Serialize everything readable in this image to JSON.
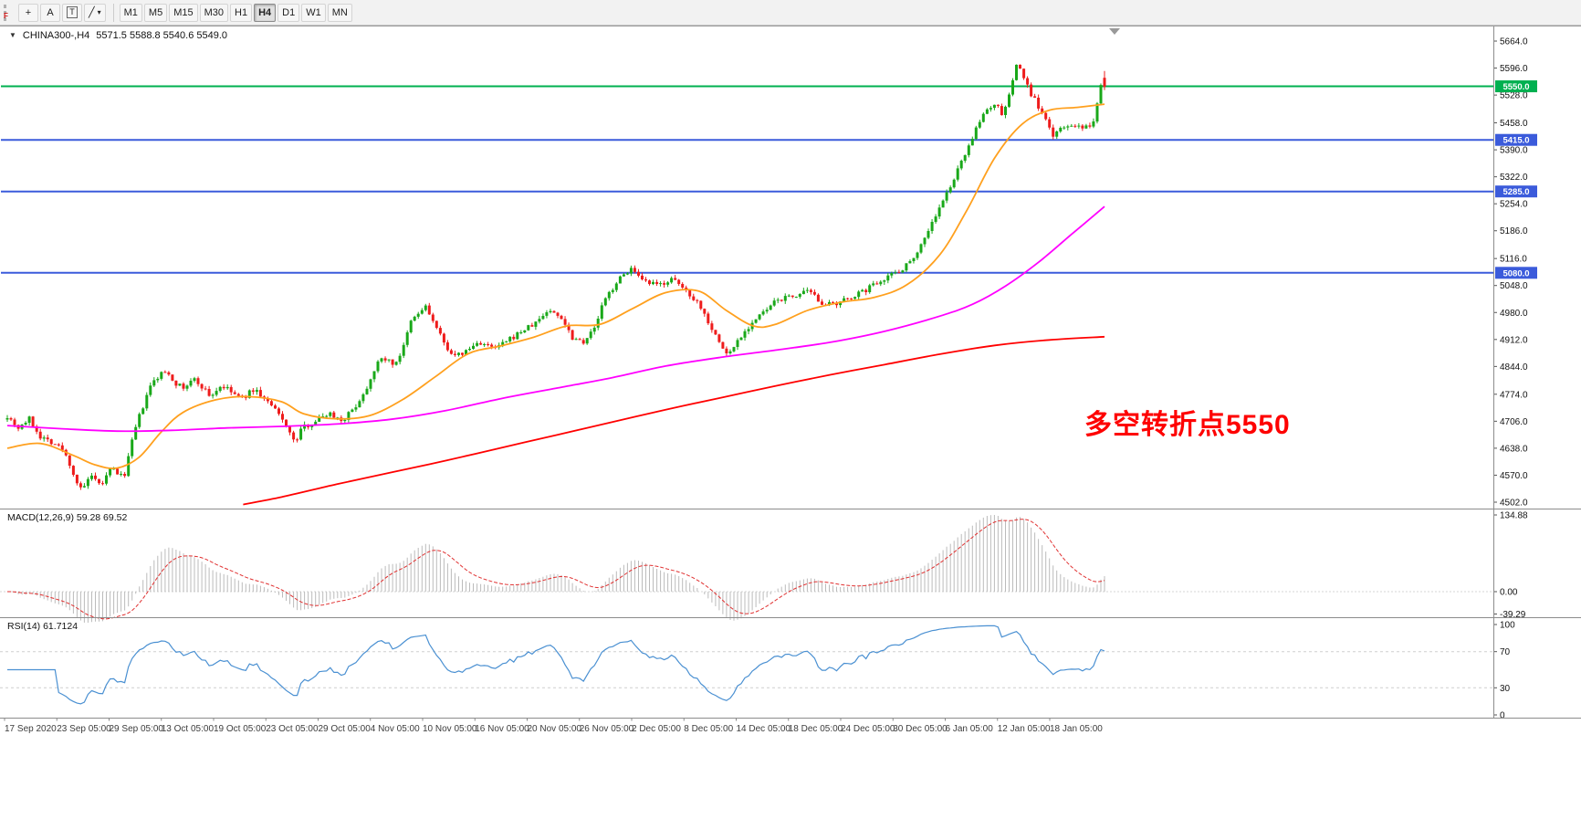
{
  "toolbar": {
    "edge_tab": "F",
    "tools": [
      {
        "name": "cursor-tool",
        "glyph": "+"
      },
      {
        "name": "text-tool",
        "glyph": "A"
      },
      {
        "name": "text-label-tool",
        "glyph": "T",
        "boxed": true
      },
      {
        "name": "shapes-tool",
        "glyph": "╱",
        "caret": "▾"
      }
    ],
    "timeframes": [
      "M1",
      "M5",
      "M15",
      "M30",
      "H1",
      "H4",
      "D1",
      "W1",
      "MN"
    ],
    "active_timeframe": "H4"
  },
  "icons": {
    "symbol_marker": "▼"
  },
  "chart": {
    "title": "CHINA300-,H4",
    "ohlc_text": "5571.5 5588.8 5540.6 5549.0",
    "annotation": {
      "text": "多空转折点5550",
      "color": "#FE0000"
    },
    "y_ticks": [
      5664,
      5596,
      5528,
      5458,
      5390,
      5322,
      5254,
      5186,
      5116,
      5048,
      4980,
      4912,
      4844,
      4774,
      4706,
      4638,
      4570,
      4502
    ]
  },
  "indicators": {
    "macd": {
      "label": "MACD(12,26,9) 59.28 69.52"
    },
    "rsi": {
      "label": "RSI(14) 61.7124"
    }
  },
  "time_axis": [
    "17 Sep 2020",
    "23 Sep 05:00",
    "29 Sep 05:00",
    "13 Oct 05:00",
    "19 Oct 05:00",
    "23 Oct 05:00",
    "29 Oct 05:00",
    "4 Nov 05:00",
    "10 Nov 05:00",
    "16 Nov 05:00",
    "20 Nov 05:00",
    "26 Nov 05:00",
    "2 Dec 05:00",
    "8 Dec 05:00",
    "14 Dec 05:00",
    "18 Dec 05:00",
    "24 Dec 05:00",
    "30 Dec 05:00",
    "6 Jan 05:00",
    "12 Jan 05:00",
    "18 Jan 05:00"
  ],
  "chart_data": {
    "type": "candlestick",
    "symbol": "CHINA300-",
    "timeframe": "H4",
    "title": "CHINA300-,H4 5571.5 5588.8 5540.6 5549.0",
    "last_candle": {
      "open": 5571.5,
      "high": 5588.8,
      "low": 5540.6,
      "close": 5549.0
    },
    "visible_price_range": [
      4502.0,
      5664.0
    ],
    "visible_time_range": [
      "17 Sep 2020",
      "18 Jan 05:00"
    ],
    "candle_count": 300,
    "seed": 7,
    "price_path": [
      [
        0.0,
        4720
      ],
      [
        0.01,
        4690
      ],
      [
        0.02,
        4712
      ],
      [
        0.03,
        4668
      ],
      [
        0.042,
        4652
      ],
      [
        0.05,
        4635
      ],
      [
        0.056,
        4605
      ],
      [
        0.062,
        4560
      ],
      [
        0.068,
        4528
      ],
      [
        0.075,
        4568
      ],
      [
        0.085,
        4542
      ],
      [
        0.095,
        4588
      ],
      [
        0.106,
        4562
      ],
      [
        0.112,
        4635
      ],
      [
        0.118,
        4700
      ],
      [
        0.125,
        4752
      ],
      [
        0.131,
        4798
      ],
      [
        0.14,
        4825
      ],
      [
        0.146,
        4832
      ],
      [
        0.152,
        4806
      ],
      [
        0.16,
        4788
      ],
      [
        0.17,
        4812
      ],
      [
        0.178,
        4792
      ],
      [
        0.185,
        4768
      ],
      [
        0.195,
        4796
      ],
      [
        0.205,
        4778
      ],
      [
        0.214,
        4762
      ],
      [
        0.225,
        4788
      ],
      [
        0.235,
        4760
      ],
      [
        0.243,
        4738
      ],
      [
        0.255,
        4694
      ],
      [
        0.262,
        4648
      ],
      [
        0.268,
        4688
      ],
      [
        0.28,
        4706
      ],
      [
        0.293,
        4728
      ],
      [
        0.305,
        4708
      ],
      [
        0.315,
        4735
      ],
      [
        0.326,
        4780
      ],
      [
        0.335,
        4842
      ],
      [
        0.343,
        4868
      ],
      [
        0.352,
        4848
      ],
      [
        0.36,
        4882
      ],
      [
        0.368,
        4958
      ],
      [
        0.375,
        4978
      ],
      [
        0.381,
        4996
      ],
      [
        0.388,
        4958
      ],
      [
        0.398,
        4902
      ],
      [
        0.408,
        4868
      ],
      [
        0.418,
        4882
      ],
      [
        0.43,
        4906
      ],
      [
        0.443,
        4888
      ],
      [
        0.455,
        4906
      ],
      [
        0.468,
        4932
      ],
      [
        0.48,
        4950
      ],
      [
        0.493,
        4986
      ],
      [
        0.505,
        4968
      ],
      [
        0.515,
        4918
      ],
      [
        0.525,
        4908
      ],
      [
        0.535,
        4938
      ],
      [
        0.543,
        5004
      ],
      [
        0.555,
        5056
      ],
      [
        0.568,
        5092
      ],
      [
        0.578,
        5058
      ],
      [
        0.593,
        5048
      ],
      [
        0.605,
        5064
      ],
      [
        0.617,
        5040
      ],
      [
        0.63,
        5004
      ],
      [
        0.64,
        4952
      ],
      [
        0.65,
        4898
      ],
      [
        0.657,
        4872
      ],
      [
        0.667,
        4916
      ],
      [
        0.68,
        4958
      ],
      [
        0.692,
        4986
      ],
      [
        0.702,
        5012
      ],
      [
        0.717,
        5022
      ],
      [
        0.73,
        5032
      ],
      [
        0.742,
        5006
      ],
      [
        0.755,
        4996
      ],
      [
        0.767,
        5018
      ],
      [
        0.78,
        5032
      ],
      [
        0.792,
        5056
      ],
      [
        0.805,
        5076
      ],
      [
        0.817,
        5092
      ],
      [
        0.83,
        5136
      ],
      [
        0.842,
        5202
      ],
      [
        0.855,
        5272
      ],
      [
        0.867,
        5342
      ],
      [
        0.875,
        5396
      ],
      [
        0.884,
        5446
      ],
      [
        0.892,
        5492
      ],
      [
        0.9,
        5506
      ],
      [
        0.908,
        5476
      ],
      [
        0.917,
        5572
      ],
      [
        0.921,
        5612
      ],
      [
        0.925,
        5582
      ],
      [
        0.931,
        5540
      ],
      [
        0.937,
        5514
      ],
      [
        0.946,
        5464
      ],
      [
        0.954,
        5424
      ],
      [
        0.962,
        5446
      ],
      [
        0.971,
        5456
      ],
      [
        0.979,
        5440
      ],
      [
        0.987,
        5452
      ],
      [
        0.99,
        5458
      ],
      [
        0.9966,
        5560
      ],
      [
        1.0,
        5549
      ]
    ],
    "moving_averages": [
      {
        "name": "fast-ma",
        "color": "#FFA01E",
        "path": [
          [
            0.0,
            4638
          ],
          [
            0.03,
            4650
          ],
          [
            0.06,
            4620
          ],
          [
            0.08,
            4596
          ],
          [
            0.1,
            4588
          ],
          [
            0.12,
            4615
          ],
          [
            0.14,
            4678
          ],
          [
            0.16,
            4728
          ],
          [
            0.19,
            4760
          ],
          [
            0.22,
            4768
          ],
          [
            0.25,
            4755
          ],
          [
            0.27,
            4725
          ],
          [
            0.3,
            4712
          ],
          [
            0.33,
            4720
          ],
          [
            0.36,
            4760
          ],
          [
            0.39,
            4818
          ],
          [
            0.42,
            4876
          ],
          [
            0.45,
            4896
          ],
          [
            0.48,
            4918
          ],
          [
            0.51,
            4946
          ],
          [
            0.54,
            4950
          ],
          [
            0.57,
            4990
          ],
          [
            0.6,
            5030
          ],
          [
            0.63,
            5034
          ],
          [
            0.655,
            4986
          ],
          [
            0.68,
            4946
          ],
          [
            0.7,
            4950
          ],
          [
            0.73,
            4986
          ],
          [
            0.76,
            5006
          ],
          [
            0.79,
            5018
          ],
          [
            0.82,
            5050
          ],
          [
            0.85,
            5126
          ],
          [
            0.875,
            5240
          ],
          [
            0.9,
            5370
          ],
          [
            0.925,
            5455
          ],
          [
            0.95,
            5490
          ],
          [
            0.975,
            5497
          ],
          [
            1.0,
            5505
          ]
        ]
      },
      {
        "name": "medium-ma",
        "color": "#FF00FF",
        "path": [
          [
            0.0,
            4695
          ],
          [
            0.05,
            4687
          ],
          [
            0.1,
            4681
          ],
          [
            0.15,
            4683
          ],
          [
            0.2,
            4689
          ],
          [
            0.25,
            4693
          ],
          [
            0.3,
            4699
          ],
          [
            0.35,
            4711
          ],
          [
            0.4,
            4733
          ],
          [
            0.45,
            4763
          ],
          [
            0.5,
            4789
          ],
          [
            0.55,
            4815
          ],
          [
            0.6,
            4845
          ],
          [
            0.65,
            4867
          ],
          [
            0.7,
            4885
          ],
          [
            0.75,
            4905
          ],
          [
            0.8,
            4933
          ],
          [
            0.85,
            4971
          ],
          [
            0.88,
            5001
          ],
          [
            0.91,
            5047
          ],
          [
            0.94,
            5107
          ],
          [
            0.97,
            5177
          ],
          [
            1.0,
            5247
          ]
        ]
      },
      {
        "name": "slow-ma",
        "color": "#FF0000",
        "path": [
          [
            0.215,
            4496
          ],
          [
            0.25,
            4515
          ],
          [
            0.3,
            4547
          ],
          [
            0.35,
            4577
          ],
          [
            0.4,
            4607
          ],
          [
            0.45,
            4639
          ],
          [
            0.5,
            4671
          ],
          [
            0.55,
            4703
          ],
          [
            0.6,
            4735
          ],
          [
            0.65,
            4765
          ],
          [
            0.7,
            4795
          ],
          [
            0.75,
            4823
          ],
          [
            0.8,
            4849
          ],
          [
            0.85,
            4875
          ],
          [
            0.9,
            4897
          ],
          [
            0.95,
            4911
          ],
          [
            1.0,
            4919
          ]
        ]
      }
    ],
    "horizontal_lines": [
      {
        "price": 5550.0,
        "color": "#00B050"
      },
      {
        "price": 5415.0,
        "color": "#3B5BDB"
      },
      {
        "price": 5285.0,
        "color": "#3B5BDB"
      },
      {
        "price": 5080.0,
        "color": "#3B5BDB"
      }
    ],
    "indicators": [
      {
        "name": "MACD",
        "params": [
          12,
          26,
          9
        ],
        "current": [
          59.28,
          69.52
        ],
        "axis_ticks": [
          134.88,
          0.0,
          -39.29
        ]
      },
      {
        "name": "RSI",
        "params": [
          14
        ],
        "current": 61.7124,
        "axis_ticks": [
          100,
          70,
          30,
          0
        ],
        "levels": [
          70,
          30
        ]
      }
    ],
    "colors": {
      "bull": "#19A819",
      "bear": "#EE1C1C",
      "macd_histogram": "#BBBBBB",
      "macd_signal": "#E03030",
      "rsi": "#4A90D2",
      "resistance_green": "#00B050",
      "support_blue": "#3B5BDB"
    }
  }
}
